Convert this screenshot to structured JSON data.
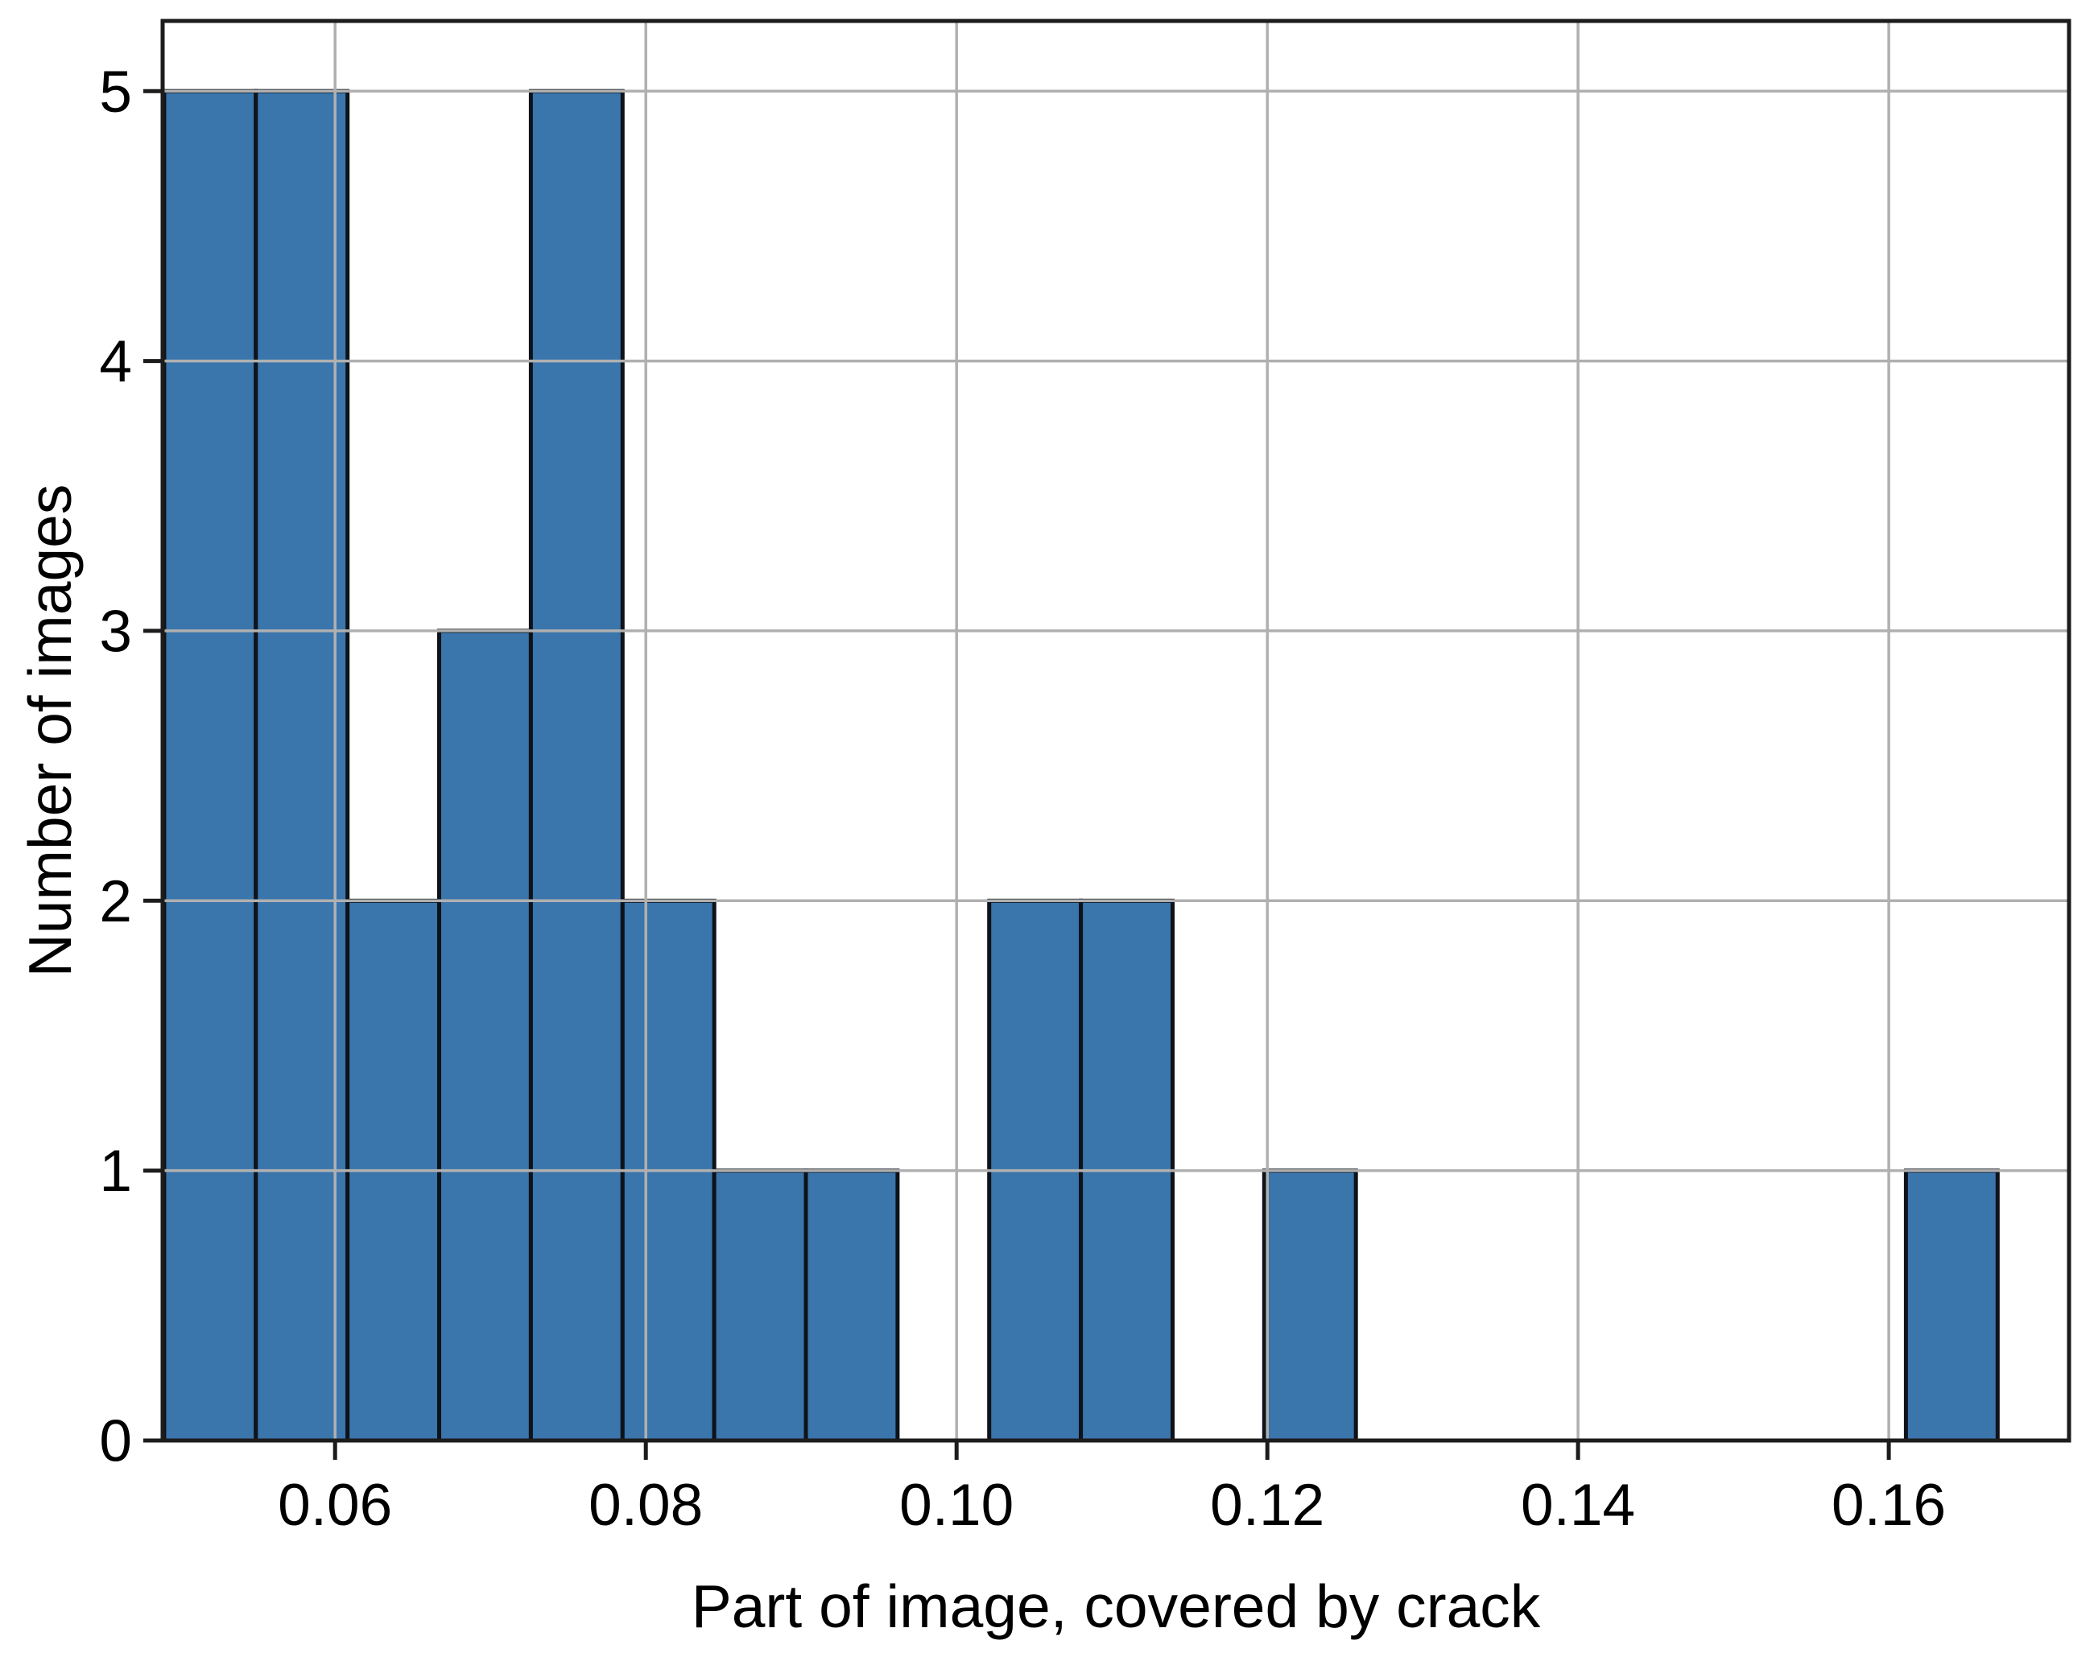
{
  "chart_data": {
    "type": "bar",
    "subtype": "histogram",
    "title": "",
    "xlabel": "Part of image, covered by crack",
    "ylabel": "Number of images",
    "bin_edges": [
      0.049,
      0.0549,
      0.0608,
      0.0667,
      0.0726,
      0.0785,
      0.0844,
      0.0903,
      0.0962,
      0.1021,
      0.108,
      0.1139,
      0.1198,
      0.1257,
      0.1316,
      0.1375,
      0.1434,
      0.1493,
      0.1552,
      0.1611,
      0.167
    ],
    "counts": [
      5,
      5,
      2,
      3,
      5,
      2,
      1,
      1,
      0,
      2,
      2,
      0,
      1,
      0,
      0,
      0,
      0,
      0,
      0,
      1
    ],
    "xticks": {
      "values": [
        0.06,
        0.08,
        0.1,
        0.12,
        0.14,
        0.16
      ],
      "labels": [
        "0.06",
        "0.08",
        "0.10",
        "0.12",
        "0.14",
        "0.16"
      ]
    },
    "yticks": {
      "values": [
        0,
        1,
        2,
        3,
        4,
        5
      ],
      "labels": [
        "0",
        "1",
        "2",
        "3",
        "4",
        "5"
      ]
    },
    "xlim": [
      0.0489,
      0.1716
    ],
    "ylim": [
      0,
      5.26
    ],
    "grid": true,
    "grid_above_bars": true,
    "legend": "none",
    "colors": {
      "bar_fill": "#3a75ac",
      "bar_edge": "#0e1219",
      "grid": "#b0b0b0",
      "spine": "#1c1c1c",
      "tick": "#1c1c1c",
      "text": "#000000",
      "background": "#ffffff"
    }
  }
}
